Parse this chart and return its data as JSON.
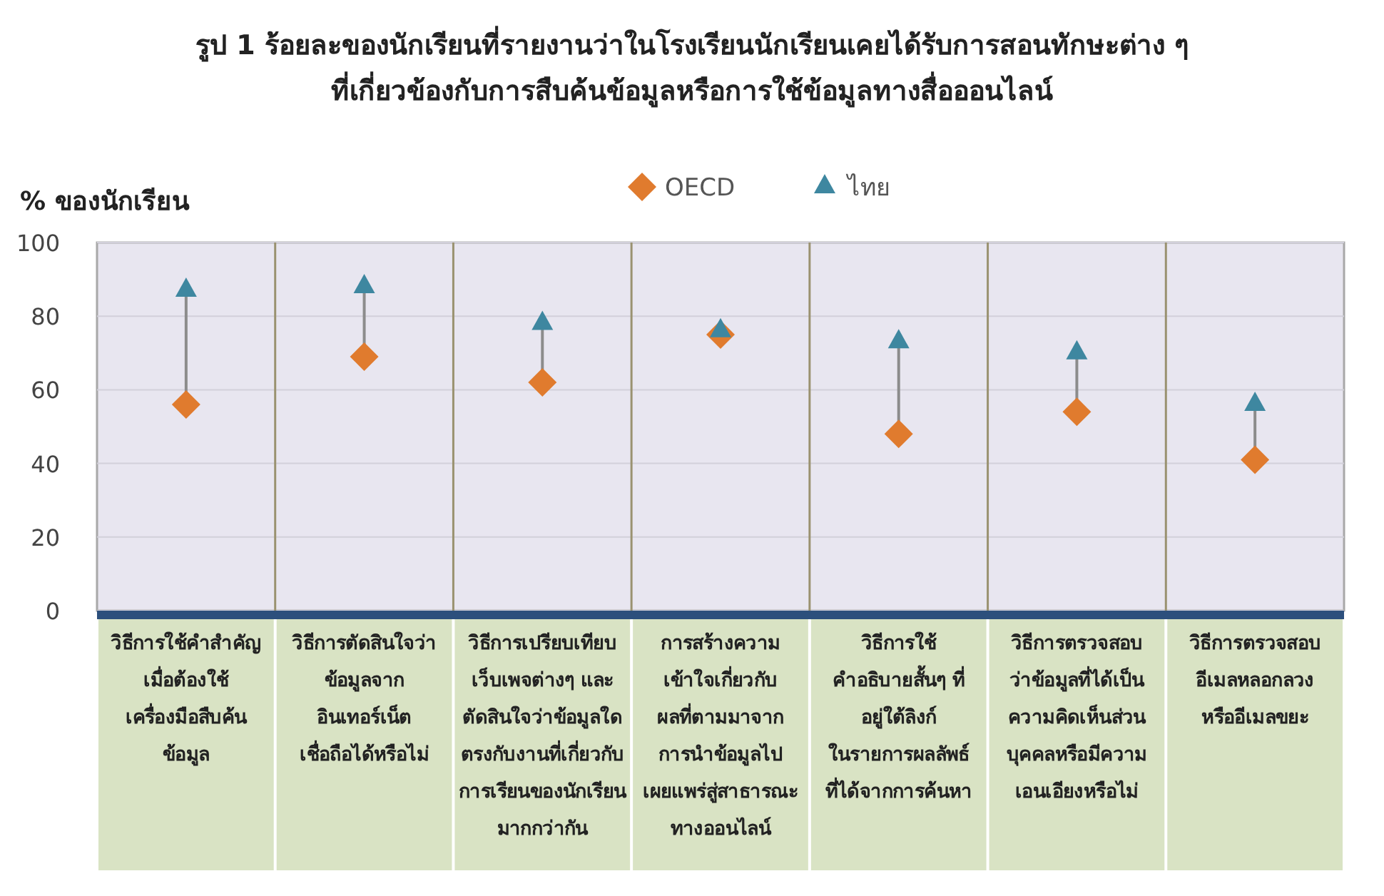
{
  "chart_data": {
    "type": "scatter",
    "title": "รูป 1  ร้อยละของนักเรียนที่รายงานว่าในโรงเรียนนักเรียนเคยได้รับการสอนทักษะต่าง ๆ\nที่เกี่ยวข้องกับการสืบค้นข้อมูลหรือการใช้ข้อมูลทางสื่อออนไลน์",
    "ylabel": "% ของนักเรียน",
    "categories": [
      "วิธีการใช้คำสำคัญ\nเมื่อต้องใช้\nเครื่องมือสืบค้น\nข้อมูล",
      "วิธีการตัดสินใจว่า\nข้อมูลจาก\nอินเทอร์เน็ต\nเชื่อถือได้หรือไม่",
      "วิธีการเปรียบเทียบ\nเว็บเพจต่างๆ และ\nตัดสินใจว่าข้อมูลใด\nตรงกับงานที่เกี่ยวกับ\nการเรียนของนักเรียน\nมากกว่ากัน",
      "การสร้างความ\nเข้าใจเกี่ยวกับ\nผลที่ตามมาจาก\nการนำข้อมูลไป\nเผยแพร่สู่สาธารณะ\nทางออนไลน์",
      "วิธีการใช้\nคำอธิบายสั้นๆ ที่\nอยู่ใต้ลิงก์\nในรายการผลลัพธ์\nที่ได้จากการค้นหา",
      "วิธีการตรวจสอบ\nว่าข้อมูลที่ได้เป็น\nความคิดเห็นส่วน\nบุคคลหรือมีความ\nเอนเอียงหรือไม่",
      "วิธีการตรวจสอบ\nอีเมลหลอกลวง\nหรืออีเมลขยะ"
    ],
    "series": [
      {
        "name": "OECD",
        "color": "#e07b2e",
        "marker": "diamond",
        "values": [
          56,
          69,
          62,
          75,
          48,
          54,
          41
        ]
      },
      {
        "name": "ไทย",
        "color": "#3e87a0",
        "marker": "triangle",
        "values": [
          87,
          88,
          78,
          76,
          73,
          70,
          56
        ]
      }
    ],
    "ylim": [
      0,
      100
    ],
    "yticks": [
      0,
      20,
      40,
      60,
      80,
      100
    ],
    "grid": "y",
    "legend": "top"
  }
}
